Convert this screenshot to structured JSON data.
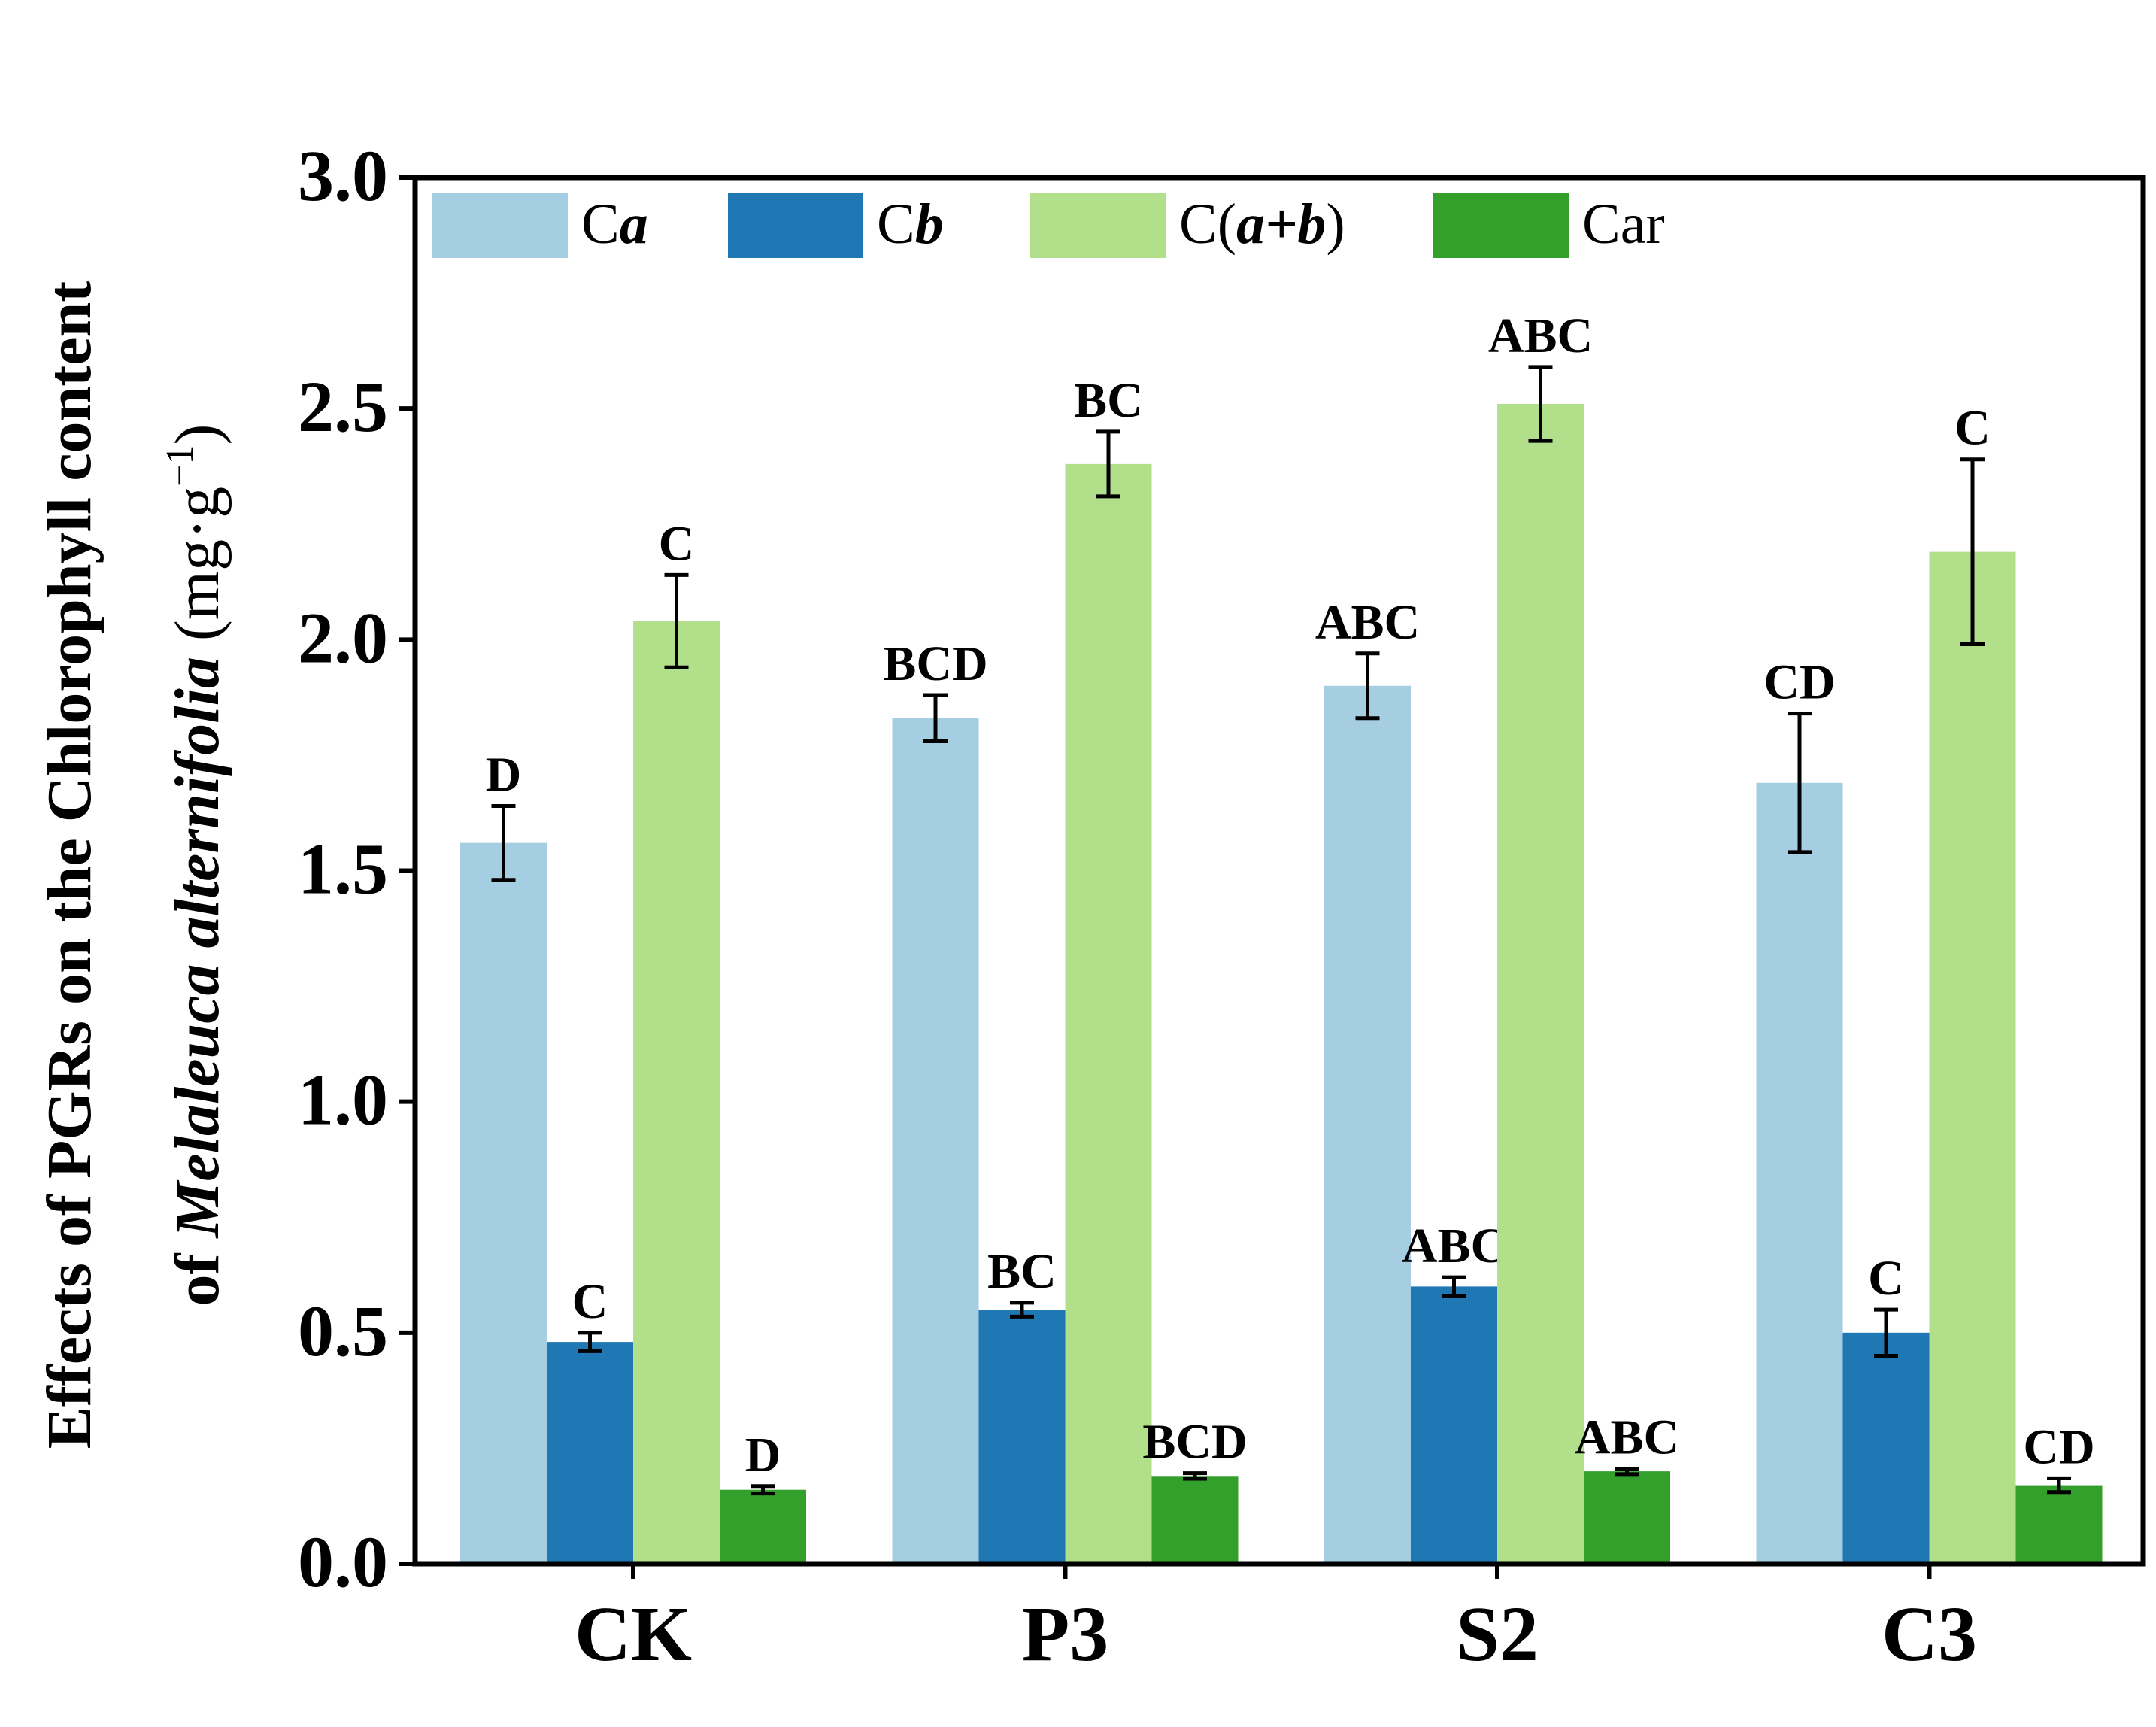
{
  "chart_data": {
    "type": "bar",
    "title": "",
    "ylabel_line1": "Effects of PGRs on the Chlorophyll content",
    "ylabel_line2_prefix": "of ",
    "ylabel_line2_italic": "Melaleuca alternifolia",
    "ylabel_line2_unit": " (mg·g",
    "ylabel_line2_sup": "−1",
    "ylabel_line2_close": ")",
    "xlabel": "",
    "ylim": [
      0,
      3.0
    ],
    "yticks": [
      "0.0",
      "0.5",
      "1.0",
      "1.5",
      "2.0",
      "2.5",
      "3.0"
    ],
    "categories": [
      "CK",
      "P3",
      "S2",
      "C3"
    ],
    "legend_position": "top",
    "series": [
      {
        "name": "Ca",
        "label_parts": [
          "C",
          "a",
          ""
        ],
        "color": "#a6cee3",
        "values": [
          1.56,
          1.83,
          1.9,
          1.69
        ],
        "errors": [
          0.08,
          0.05,
          0.07,
          0.15
        ],
        "letters": [
          "D",
          "BCD",
          "ABC",
          "CD"
        ]
      },
      {
        "name": "Cb",
        "label_parts": [
          "C",
          "b",
          ""
        ],
        "color": "#1f78b4",
        "values": [
          0.48,
          0.55,
          0.6,
          0.5
        ],
        "errors": [
          0.02,
          0.015,
          0.02,
          0.05
        ],
        "letters": [
          "C",
          "BC",
          "ABC",
          "C"
        ]
      },
      {
        "name": "C(a+b)",
        "label_parts": [
          "C(",
          "a+b",
          ")"
        ],
        "color": "#b2df8a",
        "values": [
          2.04,
          2.38,
          2.51,
          2.19
        ],
        "errors": [
          0.1,
          0.07,
          0.08,
          0.2
        ],
        "letters": [
          "C",
          "BC",
          "ABC",
          "C"
        ]
      },
      {
        "name": "Car",
        "label_parts": [
          "Car",
          "",
          ""
        ],
        "color": "#33a02c",
        "values": [
          0.16,
          0.19,
          0.2,
          0.17
        ],
        "errors": [
          0.008,
          0.006,
          0.006,
          0.015
        ],
        "letters": [
          "D",
          "BCD",
          "ABC",
          "CD"
        ]
      }
    ]
  }
}
